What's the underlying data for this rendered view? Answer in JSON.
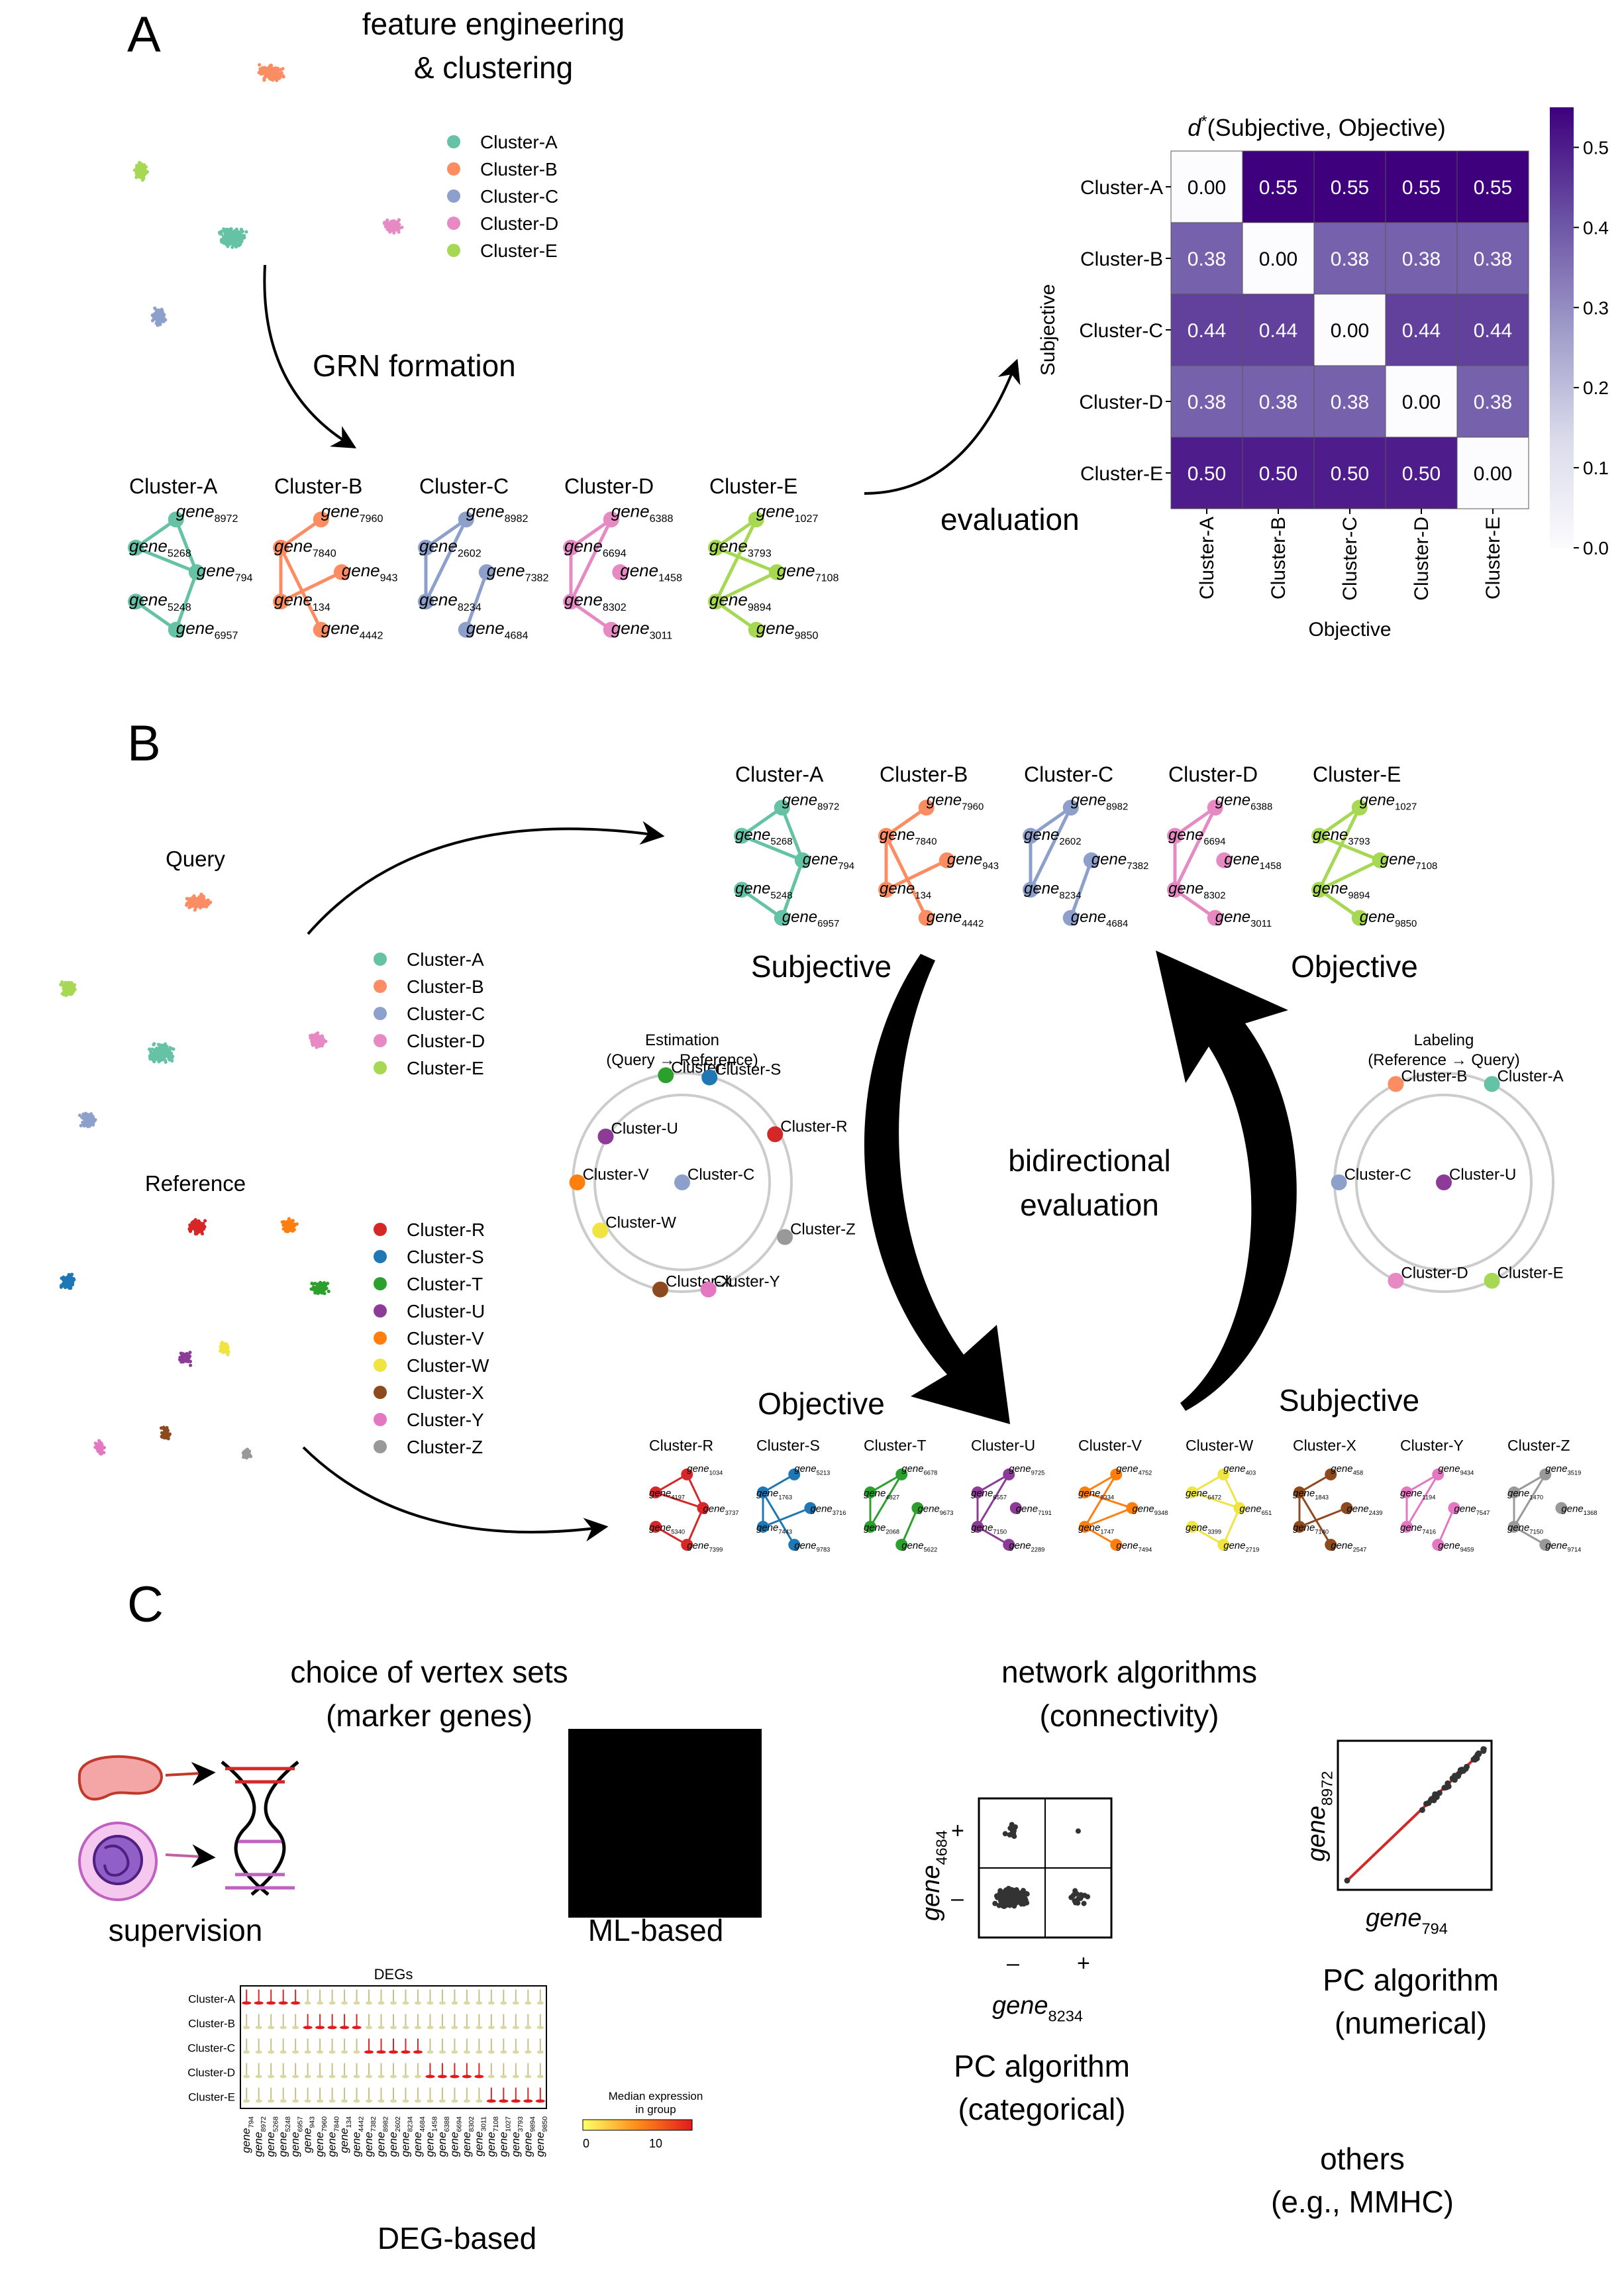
{
  "panels": {
    "a": "A",
    "b": "B",
    "c": "C"
  },
  "panel_a": {
    "title_line1": "feature engineering",
    "title_line2": "& clustering",
    "legend": [
      {
        "label": "Cluster-A",
        "color": "#66c2a5"
      },
      {
        "label": "Cluster-B",
        "color": "#fc8d62"
      },
      {
        "label": "Cluster-C",
        "color": "#8da0cb"
      },
      {
        "label": "Cluster-D",
        "color": "#e78ac3"
      },
      {
        "label": "Cluster-E",
        "color": "#a6d854"
      }
    ],
    "grn_formation": "GRN formation",
    "evaluation": "evaluation"
  },
  "grns": [
    {
      "name": "Cluster-A",
      "color": "#66c2a5",
      "nodes": [
        {
          "g": "gene",
          "s": "8972"
        },
        {
          "g": "gene",
          "s": "5268"
        },
        {
          "g": "gene",
          "s": "794"
        },
        {
          "g": "gene",
          "s": "5248"
        },
        {
          "g": "gene",
          "s": "6957"
        }
      ]
    },
    {
      "name": "Cluster-B",
      "color": "#fc8d62",
      "nodes": [
        {
          "g": "gene",
          "s": "7960"
        },
        {
          "g": "gene",
          "s": "7840"
        },
        {
          "g": "gene",
          "s": "943"
        },
        {
          "g": "gene",
          "s": "134"
        },
        {
          "g": "gene",
          "s": "4442"
        }
      ]
    },
    {
      "name": "Cluster-C",
      "color": "#8da0cb",
      "nodes": [
        {
          "g": "gene",
          "s": "8982"
        },
        {
          "g": "gene",
          "s": "2602"
        },
        {
          "g": "gene",
          "s": "7382"
        },
        {
          "g": "gene",
          "s": "8234"
        },
        {
          "g": "gene",
          "s": "4684"
        }
      ]
    },
    {
      "name": "Cluster-D",
      "color": "#e78ac3",
      "nodes": [
        {
          "g": "gene",
          "s": "6388"
        },
        {
          "g": "gene",
          "s": "6694"
        },
        {
          "g": "gene",
          "s": "1458"
        },
        {
          "g": "gene",
          "s": "8302"
        },
        {
          "g": "gene",
          "s": "3011"
        }
      ]
    },
    {
      "name": "Cluster-E",
      "color": "#a6d854",
      "nodes": [
        {
          "g": "gene",
          "s": "1027"
        },
        {
          "g": "gene",
          "s": "3793"
        },
        {
          "g": "gene",
          "s": "7108"
        },
        {
          "g": "gene",
          "s": "9894"
        },
        {
          "g": "gene",
          "s": "9850"
        }
      ]
    }
  ],
  "heatmap": {
    "title": "d*(Subjective, Objective)",
    "title_symbol": "d",
    "title_sup": "*",
    "title_rest": "(Subjective, Objective)",
    "rows": [
      "Cluster-A",
      "Cluster-B",
      "Cluster-C",
      "Cluster-D",
      "Cluster-E"
    ],
    "cols": [
      "Cluster-A",
      "Cluster-B",
      "Cluster-C",
      "Cluster-D",
      "Cluster-E"
    ],
    "values": [
      [
        0.0,
        0.55,
        0.55,
        0.55,
        0.55
      ],
      [
        0.38,
        0.0,
        0.38,
        0.38,
        0.38
      ],
      [
        0.44,
        0.44,
        0.0,
        0.44,
        0.44
      ],
      [
        0.38,
        0.38,
        0.38,
        0.0,
        0.38
      ],
      [
        0.5,
        0.5,
        0.5,
        0.5,
        0.0
      ]
    ],
    "xlabel": "Objective",
    "ylabel": "Subjective",
    "colorbar_ticks": [
      "0.0",
      "0.1",
      "0.2",
      "0.3",
      "0.4",
      "0.5"
    ],
    "vmin": 0,
    "vmax": 0.55
  },
  "panel_b": {
    "query": "Query",
    "reference": "Reference",
    "query_legend": [
      {
        "label": "Cluster-A",
        "color": "#66c2a5"
      },
      {
        "label": "Cluster-B",
        "color": "#fc8d62"
      },
      {
        "label": "Cluster-C",
        "color": "#8da0cb"
      },
      {
        "label": "Cluster-D",
        "color": "#e78ac3"
      },
      {
        "label": "Cluster-E",
        "color": "#a6d854"
      }
    ],
    "ref_legend": [
      {
        "label": "Cluster-R",
        "color": "#d62728"
      },
      {
        "label": "Cluster-S",
        "color": "#1f77b4"
      },
      {
        "label": "Cluster-T",
        "color": "#2ca02c"
      },
      {
        "label": "Cluster-U",
        "color": "#8c3c96"
      },
      {
        "label": "Cluster-V",
        "color": "#ff7f0e"
      },
      {
        "label": "Cluster-W",
        "color": "#f0e442"
      },
      {
        "label": "Cluster-X",
        "color": "#8c4a1e"
      },
      {
        "label": "Cluster-Y",
        "color": "#e377c2"
      },
      {
        "label": "Cluster-Z",
        "color": "#999999"
      }
    ],
    "subjective_top": "Subjective",
    "objective_top": "Objective",
    "objective_bottom": "Objective",
    "subjective_bottom": "Subjective",
    "bidirectional_line1": "bidirectional",
    "bidirectional_line2": "evaluation",
    "estimation_line1": "Estimation",
    "estimation_line2": "(Query → Reference)",
    "labeling_line1": "Labeling",
    "labeling_line2": "(Reference → Query)",
    "estimation_nodes": [
      "Cluster-T",
      "Cluster-S",
      "Cluster-R",
      "Cluster-U",
      "Cluster-C",
      "Cluster-V",
      "Cluster-W",
      "Cluster-Z",
      "Cluster-X",
      "Cluster-Y"
    ],
    "labeling_nodes": [
      "Cluster-B",
      "Cluster-A",
      "Cluster-C",
      "Cluster-U",
      "Cluster-D",
      "Cluster-E"
    ],
    "ref_grns": [
      {
        "name": "Cluster-R",
        "color": "#d62728",
        "genes": [
          "1034",
          "4197",
          "3737",
          "5340",
          "7399"
        ]
      },
      {
        "name": "Cluster-S",
        "color": "#1f77b4",
        "genes": [
          "5213",
          "1763",
          "3716",
          "7443",
          "9783"
        ]
      },
      {
        "name": "Cluster-T",
        "color": "#2ca02c",
        "genes": [
          "6678",
          "4827",
          "9673",
          "2068",
          "5622"
        ]
      },
      {
        "name": "Cluster-U",
        "color": "#8c3c96",
        "genes": [
          "9725",
          "6557",
          "7191",
          "7150",
          "2289"
        ]
      },
      {
        "name": "Cluster-V",
        "color": "#ff7f0e",
        "genes": [
          "4752",
          "8334",
          "9348",
          "1747",
          "7494"
        ]
      },
      {
        "name": "Cluster-W",
        "color": "#f0e442",
        "genes": [
          "403",
          "6472",
          "651",
          "3399",
          "2719"
        ]
      },
      {
        "name": "Cluster-X",
        "color": "#8c4a1e",
        "genes": [
          "458",
          "1843",
          "2439",
          "7140",
          "2547"
        ]
      },
      {
        "name": "Cluster-Y",
        "color": "#e377c2",
        "genes": [
          "9434",
          "1194",
          "7547",
          "7416",
          "9459"
        ]
      },
      {
        "name": "Cluster-Z",
        "color": "#999999",
        "genes": [
          "3519",
          "1470",
          "1368",
          "7150",
          "9714"
        ]
      }
    ]
  },
  "panel_c": {
    "vertex_line1": "choice of vertex sets",
    "vertex_line2": "(marker genes)",
    "supervision": "supervision",
    "ml_based": "ML-based",
    "deg_based": "DEG-based",
    "network_line1": "network algorithms",
    "network_line2": "(connectivity)",
    "pc_cat_line1": "PC algorithm",
    "pc_cat_line2": "(categorical)",
    "pc_num_line1": "PC algorithm",
    "pc_num_line2": "(numerical)",
    "others_line1": "others",
    "others_line2": "(e.g., MMHC)",
    "cat_plot": {
      "ylabel_gene": "gene",
      "ylabel_sub": "4684",
      "xlabel_gene": "gene",
      "xlabel_sub": "8234",
      "plus": "+",
      "minus": "–"
    },
    "num_plot": {
      "ylabel_gene": "gene",
      "ylabel_sub": "8972",
      "xlabel_gene": "gene",
      "xlabel_sub": "794"
    },
    "degs": {
      "title": "DEGs",
      "rows": [
        "Cluster-A",
        "Cluster-B",
        "Cluster-C",
        "Cluster-D",
        "Cluster-E"
      ],
      "genes": [
        "794",
        "8972",
        "5268",
        "5248",
        "6957",
        "943",
        "7960",
        "7840",
        "134",
        "4442",
        "7382",
        "8982",
        "2602",
        "8234",
        "4684",
        "1458",
        "6388",
        "6694",
        "8302",
        "3011",
        "7108",
        "1027",
        "3793",
        "9894",
        "9850"
      ],
      "cbar_title_line1": "Median expression",
      "cbar_title_line2": "in group",
      "cbar_ticks": [
        "0",
        "10"
      ],
      "hot": [
        [
          0,
          1,
          2,
          3,
          4
        ],
        [
          5,
          6,
          7,
          8,
          9
        ],
        [
          10,
          11,
          12,
          13,
          14
        ],
        [
          15,
          16,
          17,
          18,
          19
        ],
        [
          20,
          21,
          22,
          23,
          24
        ]
      ]
    }
  }
}
